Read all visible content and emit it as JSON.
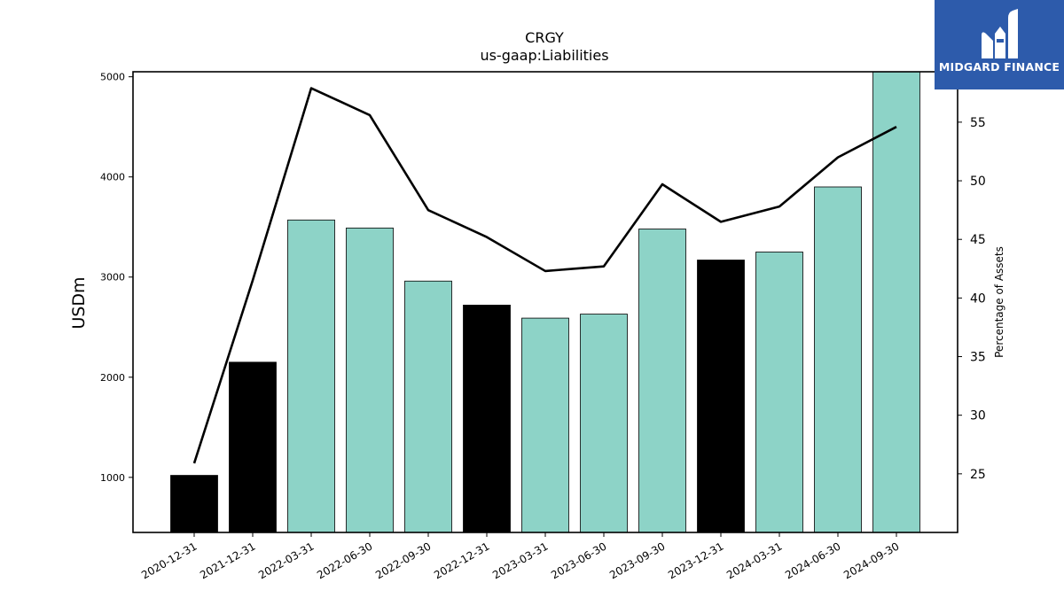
{
  "chart_data": {
    "type": "bar",
    "title": "CRGY",
    "subtitle": "us-gaap:Liabilities",
    "ylabel": "USDm",
    "y2label": "Percentage of Assets",
    "ylim": [
      450,
      5050
    ],
    "y2lim": [
      20,
      59.3
    ],
    "yticks": [
      1000,
      2000,
      3000,
      4000,
      5000
    ],
    "y2ticks": [
      25,
      30,
      35,
      40,
      45,
      50,
      55
    ],
    "categories": [
      "2020-12-31",
      "2021-12-31",
      "2022-03-31",
      "2022-06-30",
      "2022-09-30",
      "2022-12-31",
      "2023-03-31",
      "2023-06-30",
      "2023-09-30",
      "2023-12-31",
      "2024-03-31",
      "2024-06-30",
      "2024-09-30"
    ],
    "values": [
      1020,
      2150,
      3570,
      3490,
      2960,
      2720,
      2590,
      2630,
      3480,
      3170,
      3250,
      3900,
      5080
    ],
    "bar_colors": [
      "#000000",
      "#000000",
      "#8dd3c7",
      "#8dd3c7",
      "#8dd3c7",
      "#000000",
      "#8dd3c7",
      "#8dd3c7",
      "#8dd3c7",
      "#000000",
      "#8dd3c7",
      "#8dd3c7",
      "#8dd3c7"
    ],
    "line_values": [
      25.9,
      41.5,
      57.9,
      55.6,
      47.5,
      45.2,
      42.3,
      42.7,
      49.7,
      46.5,
      47.8,
      52.0,
      54.6
    ],
    "grid": false,
    "legend": "none"
  },
  "logo": {
    "text": "MIDGARD FINANCE",
    "background": "#2d5bab"
  }
}
